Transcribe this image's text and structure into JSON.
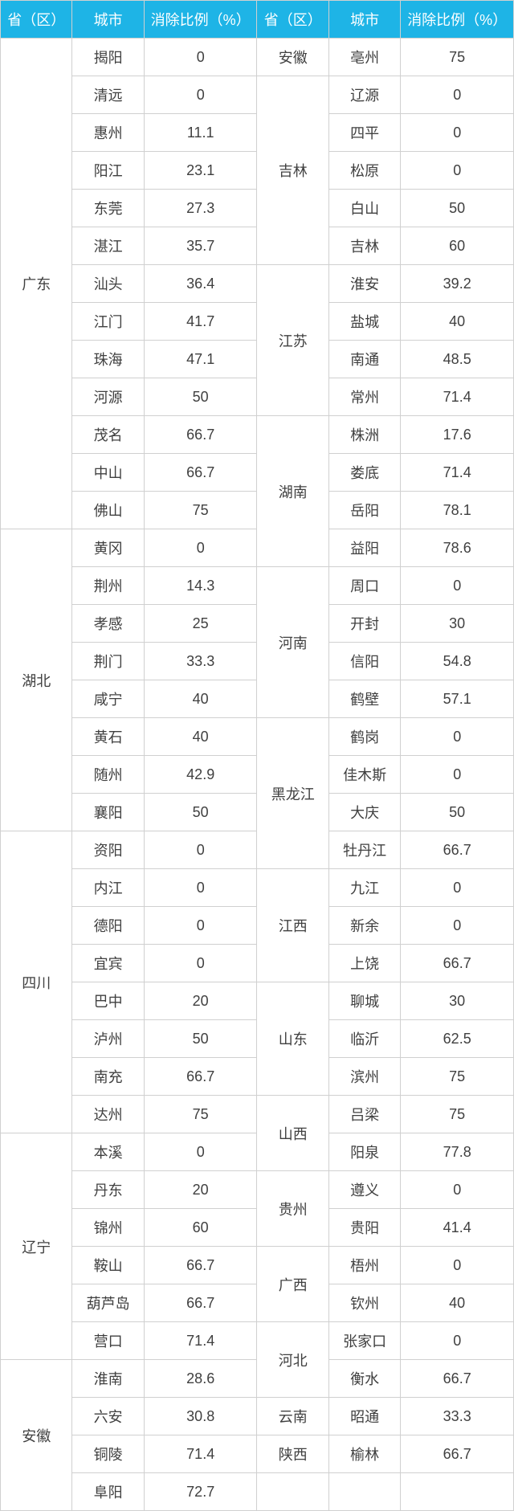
{
  "headers": {
    "province": "省（区）",
    "city": "城市",
    "ratio": "消除比例（%）"
  },
  "left": [
    {
      "p": "广东",
      "pspan": 13,
      "c": "揭阳",
      "v": "0"
    },
    {
      "c": "清远",
      "v": "0"
    },
    {
      "c": "惠州",
      "v": "11.1"
    },
    {
      "c": "阳江",
      "v": "23.1"
    },
    {
      "c": "东莞",
      "v": "27.3"
    },
    {
      "c": "湛江",
      "v": "35.7"
    },
    {
      "c": "汕头",
      "v": "36.4"
    },
    {
      "c": "江门",
      "v": "41.7"
    },
    {
      "c": "珠海",
      "v": "47.1"
    },
    {
      "c": "河源",
      "v": "50"
    },
    {
      "c": "茂名",
      "v": "66.7"
    },
    {
      "c": "中山",
      "v": "66.7"
    },
    {
      "c": "佛山",
      "v": "75"
    },
    {
      "p": "湖北",
      "pspan": 8,
      "c": "黄冈",
      "v": "0"
    },
    {
      "c": "荆州",
      "v": "14.3"
    },
    {
      "c": "孝感",
      "v": "25"
    },
    {
      "c": "荆门",
      "v": "33.3"
    },
    {
      "c": "咸宁",
      "v": "40"
    },
    {
      "c": "黄石",
      "v": "40"
    },
    {
      "c": "随州",
      "v": "42.9"
    },
    {
      "c": "襄阳",
      "v": "50"
    },
    {
      "p": "四川",
      "pspan": 8,
      "c": "资阳",
      "v": "0"
    },
    {
      "c": "内江",
      "v": "0"
    },
    {
      "c": "德阳",
      "v": "0"
    },
    {
      "c": "宜宾",
      "v": "0"
    },
    {
      "c": "巴中",
      "v": "20"
    },
    {
      "c": "泸州",
      "v": "50"
    },
    {
      "c": "南充",
      "v": "66.7"
    },
    {
      "c": "达州",
      "v": "75"
    },
    {
      "p": "辽宁",
      "pspan": 6,
      "c": "本溪",
      "v": "0"
    },
    {
      "c": "丹东",
      "v": "20"
    },
    {
      "c": "锦州",
      "v": "60"
    },
    {
      "c": "鞍山",
      "v": "66.7"
    },
    {
      "c": "葫芦岛",
      "v": "66.7"
    },
    {
      "c": "营口",
      "v": "71.4"
    },
    {
      "p": "安徽",
      "pspan": 4,
      "c": "淮南",
      "v": "28.6"
    },
    {
      "c": "六安",
      "v": "30.8"
    },
    {
      "c": "铜陵",
      "v": "71.4"
    },
    {
      "c": "阜阳",
      "v": "72.7"
    }
  ],
  "right": [
    {
      "p": "安徽",
      "pspan": 1,
      "c": "亳州",
      "v": "75"
    },
    {
      "p": "吉林",
      "pspan": 5,
      "c": "辽源",
      "v": "0"
    },
    {
      "c": "四平",
      "v": "0"
    },
    {
      "c": "松原",
      "v": "0"
    },
    {
      "c": "白山",
      "v": "50"
    },
    {
      "c": "吉林",
      "v": "60"
    },
    {
      "p": "江苏",
      "pspan": 4,
      "c": "淮安",
      "v": "39.2"
    },
    {
      "c": "盐城",
      "v": "40"
    },
    {
      "c": "南通",
      "v": "48.5"
    },
    {
      "c": "常州",
      "v": "71.4"
    },
    {
      "p": "湖南",
      "pspan": 4,
      "c": "株洲",
      "v": "17.6"
    },
    {
      "c": "娄底",
      "v": "71.4"
    },
    {
      "c": "岳阳",
      "v": "78.1"
    },
    {
      "c": "益阳",
      "v": "78.6"
    },
    {
      "p": "河南",
      "pspan": 4,
      "c": "周口",
      "v": "0"
    },
    {
      "c": "开封",
      "v": "30"
    },
    {
      "c": "信阳",
      "v": "54.8"
    },
    {
      "c": "鹤壁",
      "v": "57.1"
    },
    {
      "p": "黑龙江",
      "pspan": 4,
      "c": "鹤岗",
      "v": "0"
    },
    {
      "c": "佳木斯",
      "v": "0"
    },
    {
      "c": "大庆",
      "v": "50"
    },
    {
      "c": "牡丹江",
      "v": "66.7"
    },
    {
      "p": "江西",
      "pspan": 3,
      "c": "九江",
      "v": "0"
    },
    {
      "c": "新余",
      "v": "0"
    },
    {
      "c": "上饶",
      "v": "66.7"
    },
    {
      "p": "山东",
      "pspan": 3,
      "c": "聊城",
      "v": "30"
    },
    {
      "c": "临沂",
      "v": "62.5"
    },
    {
      "c": "滨州",
      "v": "75"
    },
    {
      "p": "山西",
      "pspan": 2,
      "c": "吕梁",
      "v": "75"
    },
    {
      "c": "阳泉",
      "v": "77.8"
    },
    {
      "p": "贵州",
      "pspan": 2,
      "c": "遵义",
      "v": "0"
    },
    {
      "c": "贵阳",
      "v": "41.4"
    },
    {
      "p": "广西",
      "pspan": 2,
      "c": "梧州",
      "v": "0"
    },
    {
      "c": "钦州",
      "v": "40"
    },
    {
      "p": "河北",
      "pspan": 2,
      "c": "张家口",
      "v": "0"
    },
    {
      "c": "衡水",
      "v": "66.7"
    },
    {
      "p": "云南",
      "pspan": 1,
      "c": "昭通",
      "v": "33.3"
    },
    {
      "p": "陕西",
      "pspan": 1,
      "c": "榆林",
      "v": "66.7"
    },
    {
      "p": "",
      "pspan": 1,
      "c": "",
      "v": ""
    }
  ]
}
